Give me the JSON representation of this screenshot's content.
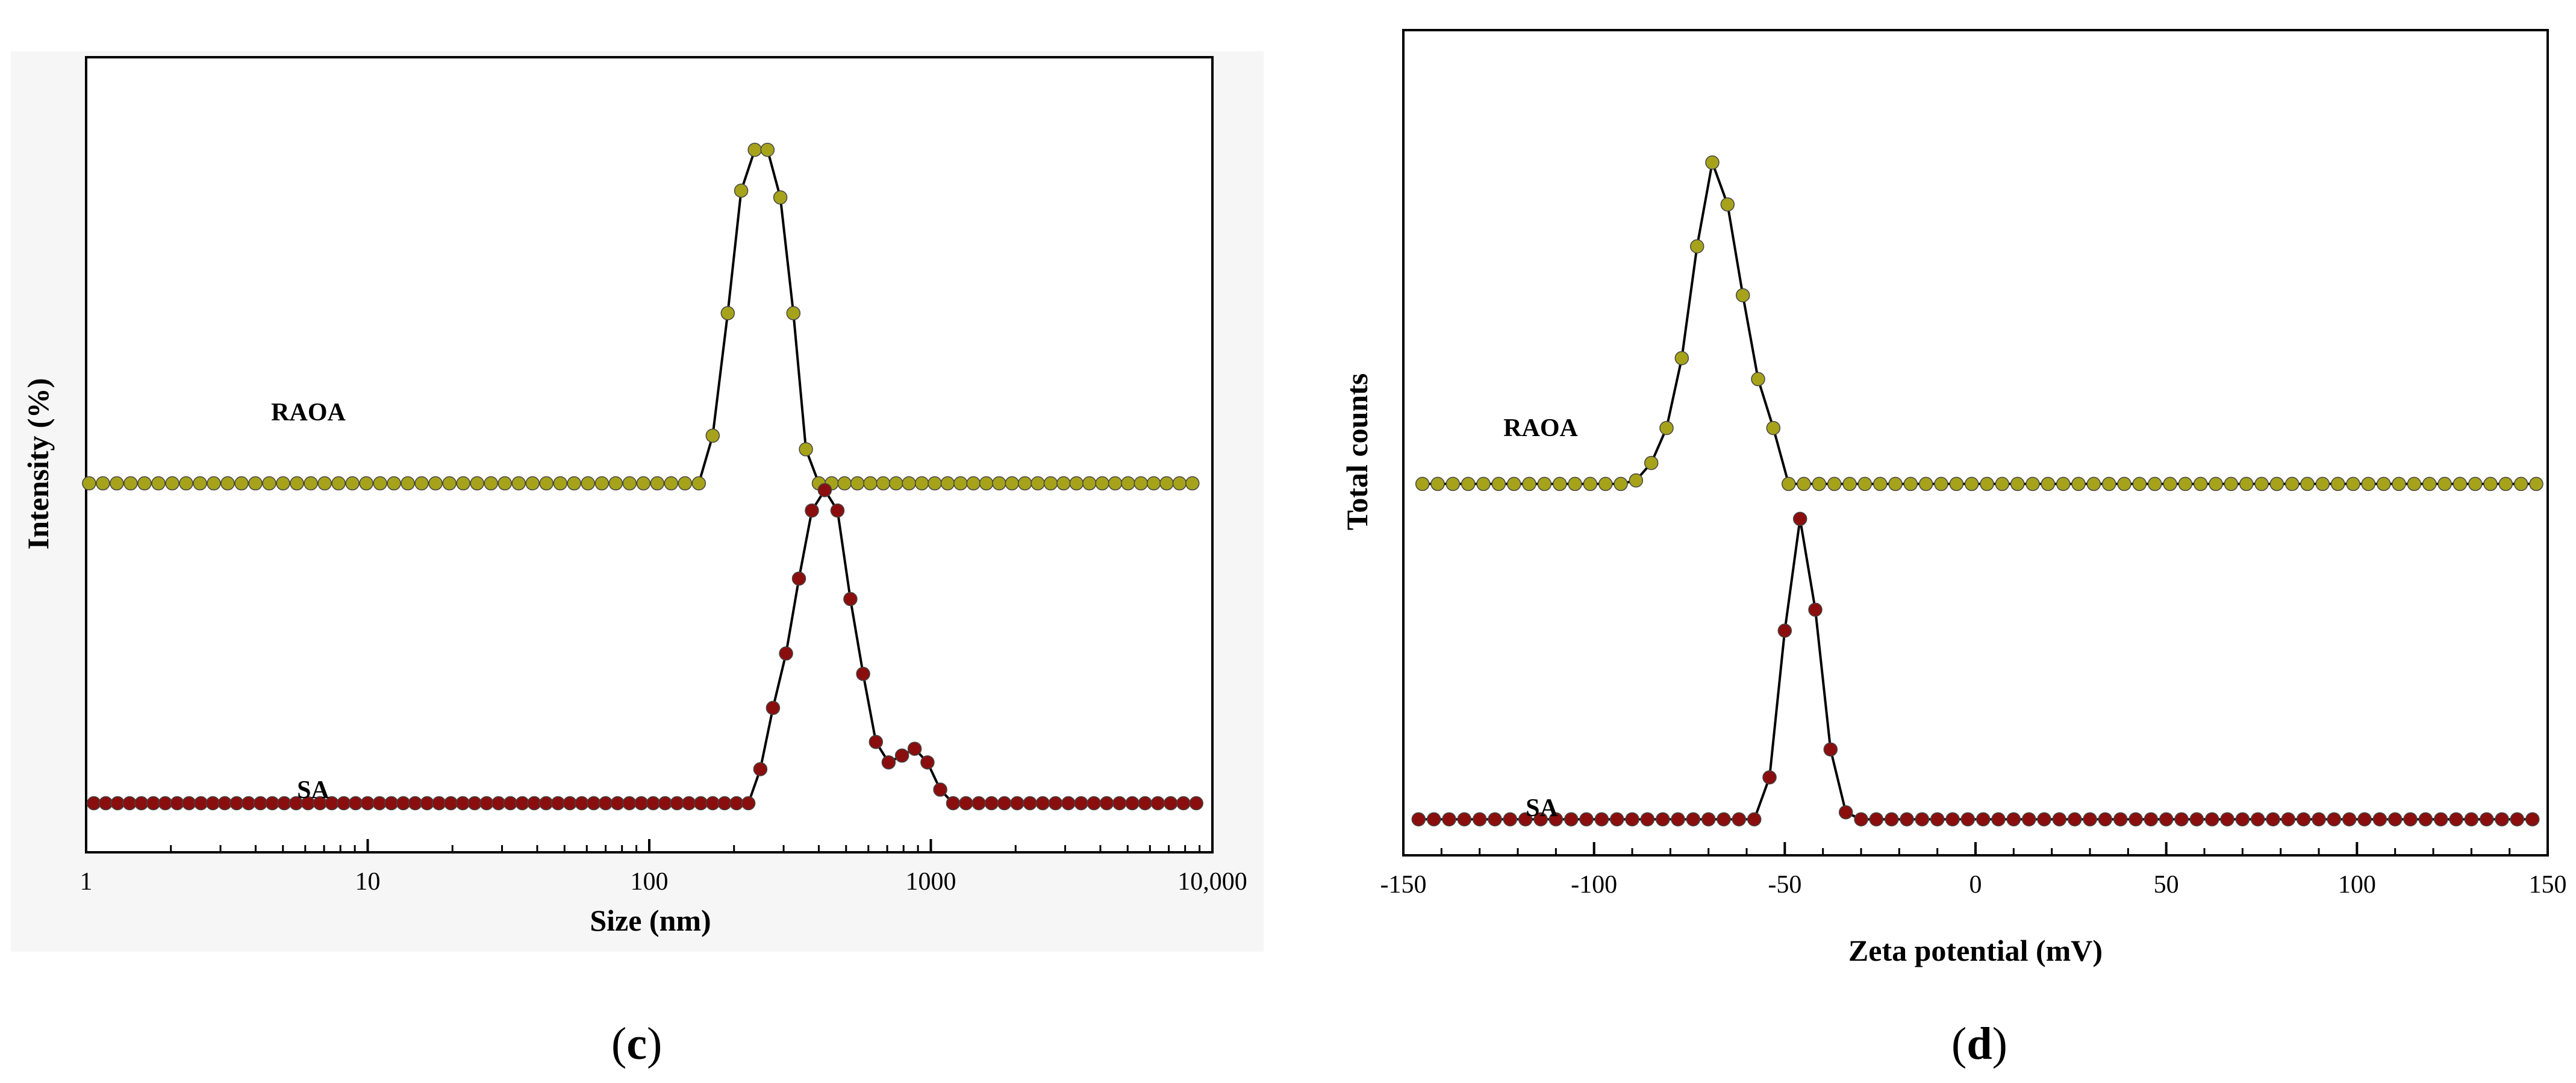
{
  "colors": {
    "raoa": "#a6a31b",
    "sa": "#8b0e0e",
    "axis": "#000000",
    "curve": "#000000"
  },
  "captions": {
    "c_prefix": "(",
    "c_letter": "c",
    "c_suffix": ")",
    "d_prefix": "(",
    "d_letter": "d",
    "d_suffix": ")"
  },
  "chart_data": [
    {
      "type": "line",
      "panel": "c",
      "xscale": "log",
      "xlabel": "Size (nm)",
      "ylabel": "Intensity (%)",
      "xlim": [
        1,
        10000
      ],
      "ylim": [
        0,
        100
      ],
      "xticks": [
        1,
        10,
        100,
        1000,
        10000
      ],
      "xtick_labels": [
        "1",
        "10",
        "100",
        "1000",
        "10,000"
      ],
      "curve_labels": {
        "raoa": "RAOA",
        "sa": "SA"
      },
      "series": [
        {
          "name": "RAOA",
          "baseline": 52,
          "x": [
            150,
            168,
            190,
            212,
            237,
            263,
            292,
            325,
            360,
            400
          ],
          "values": [
            0,
            7,
            25,
            43,
            49,
            49,
            42,
            25,
            5,
            0
          ]
        },
        {
          "name": "SA",
          "baseline": 5,
          "x": [
            225,
            248,
            275,
            306,
            340,
            378,
            420,
            466,
            518,
            575,
            638,
            708,
            790,
            876,
            973,
            1080,
            1200,
            1333,
            1480
          ],
          "values": [
            0,
            5,
            14,
            22,
            33,
            43,
            46,
            43,
            30,
            19,
            9,
            6,
            7,
            8,
            6,
            2,
            0,
            0,
            0
          ]
        }
      ]
    },
    {
      "type": "line",
      "panel": "d",
      "xlabel": "Zeta potential (mV)",
      "ylabel": "Total counts",
      "xlim": [
        -150,
        150
      ],
      "ylim": [
        0,
        100
      ],
      "xticks": [
        -150,
        -100,
        -50,
        0,
        50,
        100,
        150
      ],
      "xtick_labels": [
        "-150",
        "-100",
        "-50",
        "0",
        "50",
        "100",
        "150"
      ],
      "curve_labels": {
        "raoa": "RAOA",
        "sa": "SA"
      },
      "series": [
        {
          "name": "RAOA",
          "baseline": 51,
          "x": [
            -93,
            -89,
            -85,
            -81,
            -77,
            -73,
            -69,
            -65,
            -61,
            -57,
            -53,
            -49
          ],
          "values": [
            0,
            0.5,
            3,
            8,
            18,
            34,
            46,
            40,
            27,
            15,
            8,
            0
          ]
        },
        {
          "name": "SA",
          "baseline": 3,
          "x": [
            -58,
            -54,
            -50,
            -46,
            -42,
            -38,
            -34,
            -30
          ],
          "values": [
            0,
            6,
            27,
            43,
            30,
            10,
            1,
            0
          ]
        }
      ]
    }
  ]
}
